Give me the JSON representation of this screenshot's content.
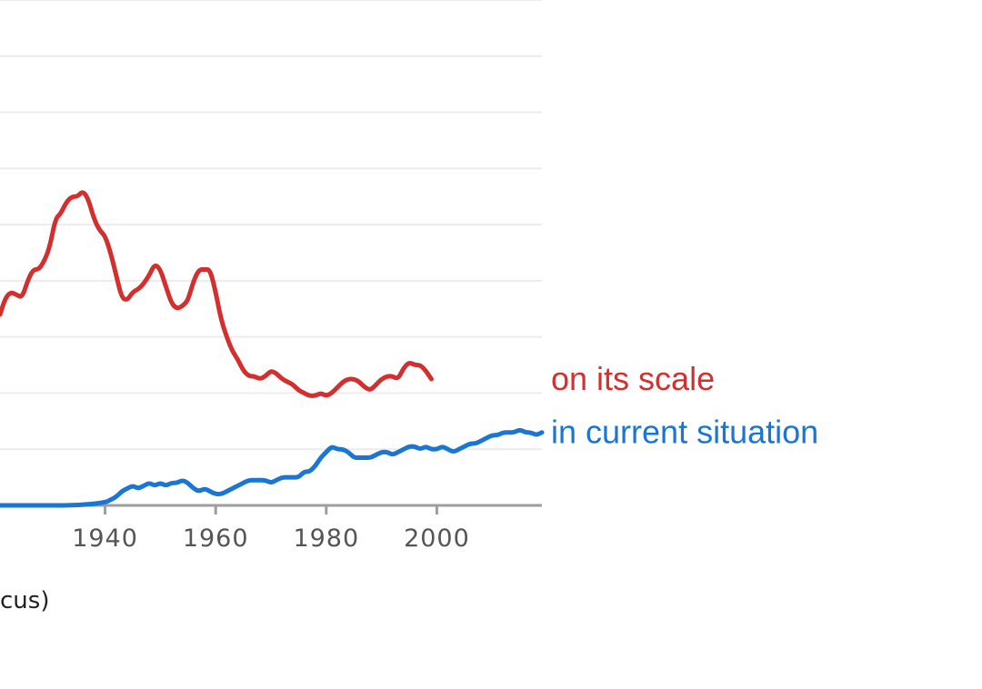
{
  "chart_data": {
    "type": "line",
    "title": "",
    "xlabel": "",
    "ylabel": "",
    "xlim": [
      1921,
      2019
    ],
    "ylim": [
      0,
      9
    ],
    "grid": true,
    "x_ticks": [
      1940,
      1960,
      1980,
      2000
    ],
    "legend": "inline-right",
    "series": [
      {
        "name": "on its scale",
        "color": "#d32f2f",
        "points": [
          [
            1921,
            3.4
          ],
          [
            1922,
            3.7
          ],
          [
            1923,
            3.8
          ],
          [
            1924,
            3.75
          ],
          [
            1925,
            3.7
          ],
          [
            1926,
            4.0
          ],
          [
            1927,
            4.2
          ],
          [
            1928,
            4.2
          ],
          [
            1929,
            4.35
          ],
          [
            1930,
            4.6
          ],
          [
            1931,
            5.1
          ],
          [
            1932,
            5.2
          ],
          [
            1933,
            5.4
          ],
          [
            1934,
            5.5
          ],
          [
            1935,
            5.5
          ],
          [
            1936,
            5.6
          ],
          [
            1937,
            5.45
          ],
          [
            1938,
            5.1
          ],
          [
            1939,
            4.9
          ],
          [
            1940,
            4.8
          ],
          [
            1941,
            4.5
          ],
          [
            1942,
            4.1
          ],
          [
            1943,
            3.7
          ],
          [
            1944,
            3.65
          ],
          [
            1945,
            3.8
          ],
          [
            1946,
            3.85
          ],
          [
            1947,
            3.95
          ],
          [
            1948,
            4.1
          ],
          [
            1949,
            4.3
          ],
          [
            1950,
            4.2
          ],
          [
            1951,
            3.9
          ],
          [
            1952,
            3.6
          ],
          [
            1953,
            3.5
          ],
          [
            1954,
            3.55
          ],
          [
            1955,
            3.65
          ],
          [
            1956,
            4.0
          ],
          [
            1957,
            4.2
          ],
          [
            1958,
            4.2
          ],
          [
            1959,
            4.2
          ],
          [
            1960,
            3.8
          ],
          [
            1961,
            3.3
          ],
          [
            1962,
            3.0
          ],
          [
            1963,
            2.75
          ],
          [
            1964,
            2.6
          ],
          [
            1965,
            2.4
          ],
          [
            1966,
            2.3
          ],
          [
            1967,
            2.3
          ],
          [
            1968,
            2.25
          ],
          [
            1969,
            2.3
          ],
          [
            1970,
            2.4
          ],
          [
            1971,
            2.35
          ],
          [
            1972,
            2.25
          ],
          [
            1973,
            2.2
          ],
          [
            1974,
            2.15
          ],
          [
            1975,
            2.05
          ],
          [
            1976,
            2.0
          ],
          [
            1977,
            1.95
          ],
          [
            1978,
            1.95
          ],
          [
            1979,
            2.0
          ],
          [
            1980,
            1.95
          ],
          [
            1981,
            2.0
          ],
          [
            1982,
            2.1
          ],
          [
            1983,
            2.2
          ],
          [
            1984,
            2.25
          ],
          [
            1985,
            2.25
          ],
          [
            1986,
            2.2
          ],
          [
            1987,
            2.1
          ],
          [
            1988,
            2.05
          ],
          [
            1989,
            2.15
          ],
          [
            1990,
            2.25
          ],
          [
            1991,
            2.3
          ],
          [
            1992,
            2.3
          ],
          [
            1993,
            2.25
          ],
          [
            1994,
            2.45
          ],
          [
            1995,
            2.55
          ],
          [
            1996,
            2.5
          ],
          [
            1997,
            2.5
          ],
          [
            1998,
            2.4
          ],
          [
            1999,
            2.25
          ]
        ]
      },
      {
        "name": "in current situation",
        "color": "#1976d2",
        "points": [
          [
            1921,
            0.0
          ],
          [
            1925,
            0.0
          ],
          [
            1930,
            0.0
          ],
          [
            1935,
            0.0
          ],
          [
            1940,
            0.05
          ],
          [
            1941,
            0.1
          ],
          [
            1942,
            0.15
          ],
          [
            1943,
            0.25
          ],
          [
            1944,
            0.3
          ],
          [
            1945,
            0.35
          ],
          [
            1946,
            0.3
          ],
          [
            1947,
            0.35
          ],
          [
            1948,
            0.4
          ],
          [
            1949,
            0.35
          ],
          [
            1950,
            0.4
          ],
          [
            1951,
            0.35
          ],
          [
            1952,
            0.4
          ],
          [
            1953,
            0.4
          ],
          [
            1954,
            0.45
          ],
          [
            1955,
            0.4
          ],
          [
            1956,
            0.3
          ],
          [
            1957,
            0.25
          ],
          [
            1958,
            0.3
          ],
          [
            1959,
            0.25
          ],
          [
            1960,
            0.2
          ],
          [
            1961,
            0.2
          ],
          [
            1962,
            0.25
          ],
          [
            1963,
            0.3
          ],
          [
            1964,
            0.35
          ],
          [
            1965,
            0.4
          ],
          [
            1966,
            0.45
          ],
          [
            1967,
            0.45
          ],
          [
            1968,
            0.45
          ],
          [
            1969,
            0.45
          ],
          [
            1970,
            0.4
          ],
          [
            1971,
            0.45
          ],
          [
            1972,
            0.5
          ],
          [
            1973,
            0.5
          ],
          [
            1974,
            0.5
          ],
          [
            1975,
            0.5
          ],
          [
            1976,
            0.6
          ],
          [
            1977,
            0.6
          ],
          [
            1978,
            0.7
          ],
          [
            1979,
            0.85
          ],
          [
            1980,
            0.95
          ],
          [
            1981,
            1.05
          ],
          [
            1982,
            1.0
          ],
          [
            1983,
            1.0
          ],
          [
            1984,
            0.95
          ],
          [
            1985,
            0.85
          ],
          [
            1986,
            0.85
          ],
          [
            1987,
            0.85
          ],
          [
            1988,
            0.85
          ],
          [
            1989,
            0.9
          ],
          [
            1990,
            0.95
          ],
          [
            1991,
            0.95
          ],
          [
            1992,
            0.9
          ],
          [
            1993,
            0.95
          ],
          [
            1994,
            1.0
          ],
          [
            1995,
            1.05
          ],
          [
            1996,
            1.05
          ],
          [
            1997,
            1.0
          ],
          [
            1998,
            1.05
          ],
          [
            1999,
            1.0
          ],
          [
            2000,
            1.0
          ],
          [
            2001,
            1.05
          ],
          [
            2002,
            1.0
          ],
          [
            2003,
            0.95
          ],
          [
            2004,
            1.0
          ],
          [
            2005,
            1.05
          ],
          [
            2006,
            1.1
          ],
          [
            2007,
            1.1
          ],
          [
            2008,
            1.15
          ],
          [
            2009,
            1.2
          ],
          [
            2010,
            1.25
          ],
          [
            2011,
            1.25
          ],
          [
            2012,
            1.3
          ],
          [
            2013,
            1.3
          ],
          [
            2014,
            1.3
          ],
          [
            2015,
            1.35
          ],
          [
            2016,
            1.3
          ],
          [
            2017,
            1.3
          ],
          [
            2018,
            1.25
          ],
          [
            2019,
            1.3
          ]
        ]
      }
    ]
  },
  "caption": "cus)"
}
